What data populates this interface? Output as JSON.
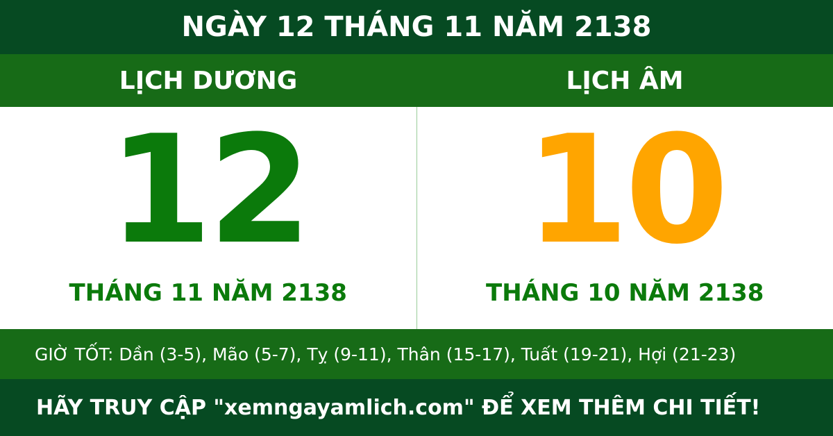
{
  "header": {
    "title": "NGÀY 12 THÁNG 11 NĂM 2138"
  },
  "solar": {
    "label": "LỊCH DƯƠNG",
    "day": "12",
    "month_year": "THÁNG 11 NĂM 2138"
  },
  "lunar": {
    "label": "LỊCH ÂM",
    "day": "10",
    "month_year": "THÁNG 10 NĂM 2138"
  },
  "good_hours": "GIỜ TỐT: Dần (3-5), Mão (5-7), Tỵ (9-11), Thân (15-17), Tuất (19-21), Hợi (21-23)",
  "footer": {
    "text": "HÃY TRUY CẬP \"xemngayamlich.com\" ĐỂ XEM THÊM CHI TIẾT!"
  }
}
